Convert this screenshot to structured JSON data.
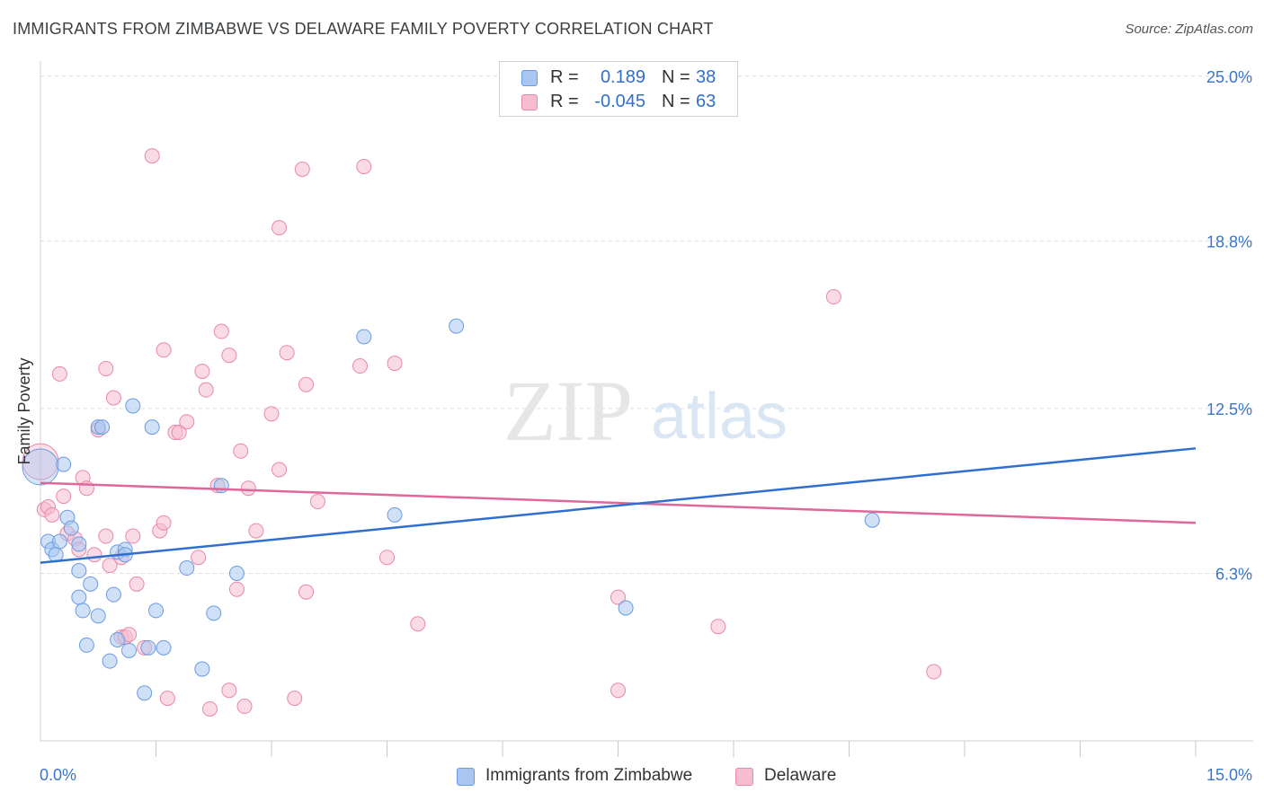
{
  "title": "IMMIGRANTS FROM ZIMBABWE VS DELAWARE FAMILY POVERTY CORRELATION CHART",
  "source": "Source: ZipAtlas.com",
  "watermark": {
    "zip": "ZIP",
    "atlas": "atlas"
  },
  "legend_top": {
    "rows": [
      {
        "r_label": "R =",
        "r_value": "0.189",
        "n_label": "N =",
        "n_value": "38"
      },
      {
        "r_label": "R =",
        "r_value": "-0.045",
        "n_label": "N =",
        "n_value": "63"
      }
    ]
  },
  "legend_bottom": {
    "items": [
      {
        "label": "Immigrants from Zimbabwe"
      },
      {
        "label": "Delaware"
      }
    ]
  },
  "colors": {
    "blue_fill": "#a8c6f0",
    "blue_stroke": "#6a9be0",
    "blue_line": "#2f6fcf",
    "pink_fill": "#f6bcd0",
    "pink_stroke": "#e889aa",
    "pink_line": "#e0679a",
    "axis_label": "#3a76c9",
    "grid": "#dcdcdc"
  },
  "chart_data": {
    "type": "scatter",
    "title": "IMMIGRANTS FROM ZIMBABWE VS DELAWARE FAMILY POVERTY CORRELATION CHART",
    "xlabel": "",
    "ylabel": "Family Poverty",
    "xlim": [
      0,
      15
    ],
    "ylim": [
      0,
      25.5
    ],
    "x_tick_labels": [
      {
        "value": 0,
        "label": "0.0%"
      },
      {
        "value": 15,
        "label": "15.0%"
      }
    ],
    "y_tick_labels": [
      {
        "value": 25.0,
        "label": "25.0%"
      },
      {
        "value": 18.8,
        "label": "18.8%"
      },
      {
        "value": 12.5,
        "label": "12.5%"
      },
      {
        "value": 6.3,
        "label": "6.3%"
      }
    ],
    "x_minor_ticks": [
      1.5,
      3.0,
      4.5,
      6.0,
      7.5,
      9.0,
      10.5,
      12.0,
      13.5,
      15.0
    ],
    "series": [
      {
        "name": "Immigrants from Zimbabwe",
        "color": "blue",
        "R": 0.189,
        "N": 38,
        "trend": {
          "x0": 0,
          "y0": 6.7,
          "x1": 15,
          "y1": 11.0
        },
        "points": [
          [
            0.0,
            10.3,
            "large"
          ],
          [
            0.1,
            7.5
          ],
          [
            0.15,
            7.2
          ],
          [
            0.2,
            7.0
          ],
          [
            0.25,
            7.5
          ],
          [
            0.3,
            10.4
          ],
          [
            0.35,
            8.4
          ],
          [
            0.4,
            8.0
          ],
          [
            0.5,
            7.4
          ],
          [
            0.5,
            5.4
          ],
          [
            0.5,
            6.4
          ],
          [
            0.55,
            4.9
          ],
          [
            0.6,
            3.6
          ],
          [
            0.65,
            5.9
          ],
          [
            0.75,
            4.7
          ],
          [
            0.75,
            11.8
          ],
          [
            0.8,
            11.8
          ],
          [
            0.9,
            3.0
          ],
          [
            0.95,
            5.5
          ],
          [
            1.0,
            3.8
          ],
          [
            1.0,
            7.1
          ],
          [
            1.1,
            7.2
          ],
          [
            1.1,
            7.0
          ],
          [
            1.15,
            3.4
          ],
          [
            1.2,
            12.6
          ],
          [
            1.35,
            1.8
          ],
          [
            1.4,
            3.5
          ],
          [
            1.45,
            11.8
          ],
          [
            1.5,
            4.9
          ],
          [
            1.6,
            3.5
          ],
          [
            1.9,
            6.5
          ],
          [
            2.1,
            2.7
          ],
          [
            2.25,
            4.8
          ],
          [
            2.35,
            9.6
          ],
          [
            2.55,
            6.3
          ],
          [
            4.2,
            15.2
          ],
          [
            4.6,
            8.5
          ],
          [
            5.4,
            15.6
          ],
          [
            7.6,
            5.0
          ],
          [
            10.8,
            8.3
          ]
        ]
      },
      {
        "name": "Delaware",
        "color": "pink",
        "R": -0.045,
        "N": 63,
        "trend": {
          "x0": 0,
          "y0": 9.7,
          "x1": 15,
          "y1": 8.2
        },
        "points": [
          [
            0.0,
            10.5,
            "large"
          ],
          [
            0.05,
            8.7
          ],
          [
            0.1,
            8.8
          ],
          [
            0.15,
            8.5
          ],
          [
            0.25,
            13.8
          ],
          [
            0.3,
            9.2
          ],
          [
            0.35,
            7.8
          ],
          [
            0.45,
            7.6
          ],
          [
            0.5,
            7.2
          ],
          [
            0.55,
            9.9
          ],
          [
            0.6,
            9.5
          ],
          [
            0.7,
            7.0
          ],
          [
            0.75,
            11.7
          ],
          [
            0.85,
            7.7
          ],
          [
            0.85,
            14.0
          ],
          [
            0.9,
            6.6
          ],
          [
            0.95,
            12.9
          ],
          [
            1.05,
            3.9
          ],
          [
            1.05,
            6.9
          ],
          [
            1.1,
            3.9
          ],
          [
            1.15,
            4.0
          ],
          [
            1.2,
            7.7
          ],
          [
            1.25,
            5.9
          ],
          [
            1.35,
            3.5
          ],
          [
            1.45,
            22.0
          ],
          [
            1.55,
            7.9
          ],
          [
            1.6,
            14.7
          ],
          [
            1.6,
            8.2
          ],
          [
            1.65,
            1.6
          ],
          [
            1.75,
            11.6
          ],
          [
            1.8,
            11.6
          ],
          [
            1.9,
            12.0
          ],
          [
            2.05,
            6.9
          ],
          [
            2.1,
            13.9
          ],
          [
            2.15,
            13.2
          ],
          [
            2.2,
            1.2
          ],
          [
            2.3,
            9.6
          ],
          [
            2.35,
            15.4
          ],
          [
            2.45,
            14.5
          ],
          [
            2.45,
            1.9
          ],
          [
            2.55,
            5.7
          ],
          [
            2.6,
            10.9
          ],
          [
            2.65,
            1.3
          ],
          [
            2.7,
            9.5
          ],
          [
            2.8,
            7.9
          ],
          [
            3.0,
            12.3
          ],
          [
            3.1,
            19.3
          ],
          [
            3.1,
            10.2
          ],
          [
            3.2,
            14.6
          ],
          [
            3.3,
            1.6
          ],
          [
            3.4,
            21.5
          ],
          [
            3.45,
            13.4
          ],
          [
            3.45,
            5.6
          ],
          [
            3.6,
            9.0
          ],
          [
            4.15,
            14.1
          ],
          [
            4.2,
            21.6
          ],
          [
            4.5,
            6.9
          ],
          [
            4.6,
            14.2
          ],
          [
            4.9,
            4.4
          ],
          [
            7.5,
            5.4
          ],
          [
            7.5,
            1.9
          ],
          [
            8.8,
            4.3
          ],
          [
            10.3,
            16.7
          ],
          [
            11.6,
            2.6
          ]
        ]
      }
    ]
  }
}
